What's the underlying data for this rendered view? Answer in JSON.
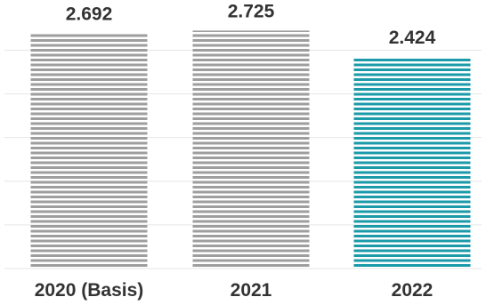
{
  "chart_data": {
    "type": "bar",
    "categories": [
      "2020 (Basis)",
      "2021",
      "2022"
    ],
    "values": [
      2692,
      2725,
      2424
    ],
    "value_labels": [
      "2.692",
      "2.725",
      "2.424"
    ],
    "ylim": [
      0,
      2800
    ],
    "grid": true,
    "legend": "none",
    "colors": [
      "#9e9e9e",
      "#9e9e9e",
      "#1b9aaa"
    ],
    "title": "",
    "xlabel": "",
    "ylabel": ""
  }
}
